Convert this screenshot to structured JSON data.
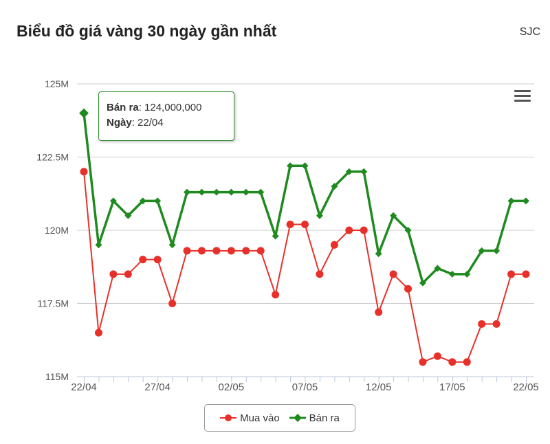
{
  "title": "Biểu đồ giá vàng 30 ngày gần nhất",
  "source": "SJC",
  "tooltip": {
    "series_label": "Bán ra",
    "value": "124,000,000",
    "date_label": "Ngày",
    "date": "22/04"
  },
  "colors": {
    "buy": "#e8302a",
    "sell": "#1f8a1f"
  },
  "icons": {
    "menu": "hamburger-menu-icon"
  },
  "chart_data": {
    "type": "line",
    "title": "",
    "x": [
      "22/04",
      "23/04",
      "24/04",
      "25/04",
      "26/04",
      "27/04",
      "28/04",
      "29/04",
      "30/04",
      "01/05",
      "02/05",
      "03/05",
      "04/05",
      "05/05",
      "06/05",
      "07/05",
      "08/05",
      "09/05",
      "10/05",
      "11/05",
      "12/05",
      "13/05",
      "14/05",
      "15/05",
      "16/05",
      "17/05",
      "18/05",
      "19/05",
      "20/05",
      "21/05",
      "22/05"
    ],
    "xticks": [
      "22/04",
      "27/04",
      "02/05",
      "07/05",
      "12/05",
      "17/05",
      "22/05"
    ],
    "yticks": [
      "115M",
      "117.5M",
      "120M",
      "122.5M",
      "125M"
    ],
    "ylim": [
      115,
      125
    ],
    "yunit": "M",
    "grid": true,
    "legend": "bottom",
    "series": [
      {
        "name": "Mua vào",
        "marker": "circle",
        "values": [
          122,
          116.5,
          118.5,
          118.5,
          119,
          119,
          117.5,
          119.3,
          119.3,
          119.3,
          119.3,
          119.3,
          119.3,
          117.8,
          120.2,
          120.2,
          118.5,
          119.5,
          120,
          120,
          117.2,
          118.5,
          118,
          115.5,
          115.7,
          115.5,
          115.5,
          116.8,
          116.8,
          118.5,
          118.5
        ]
      },
      {
        "name": "Bán ra",
        "marker": "diamond",
        "values": [
          124,
          119.5,
          121,
          120.5,
          121,
          121,
          119.5,
          121.3,
          121.3,
          121.3,
          121.3,
          121.3,
          121.3,
          119.8,
          122.2,
          122.2,
          120.5,
          121.5,
          122,
          122,
          119.2,
          120.5,
          120,
          118.2,
          118.7,
          118.5,
          118.5,
          119.3,
          119.3,
          121,
          121
        ]
      }
    ]
  }
}
